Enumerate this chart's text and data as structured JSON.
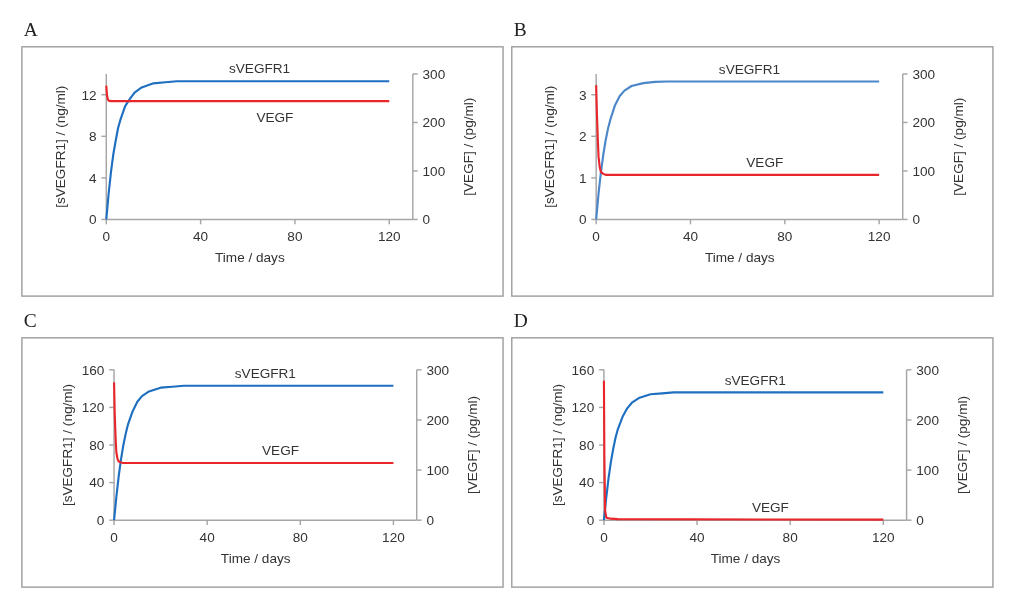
{
  "chart_data": [
    {
      "type": "line",
      "title": "A",
      "xlabel": "Time / days",
      "ylabel": "[sVEGFR1] / (ng/ml)",
      "y2label": "[VEGF] / (pg/ml)",
      "xlim": [
        0,
        130
      ],
      "xticks": [
        0,
        40,
        80,
        120
      ],
      "ylim": [
        0,
        14
      ],
      "yticks": [
        0,
        4,
        8,
        12
      ],
      "y2lim": [
        0,
        300
      ],
      "y2ticks": [
        0,
        100,
        200,
        300
      ],
      "legend": false,
      "grid": false,
      "series": [
        {
          "name": "sVEGFR1",
          "color": "#1f6fc0",
          "x": [
            0,
            1,
            2,
            3,
            4,
            5,
            6,
            8,
            10,
            12,
            15,
            20,
            25,
            30,
            40,
            60,
            80,
            100,
            120
          ],
          "values": [
            0,
            2.5,
            4.6,
            6.3,
            7.6,
            8.8,
            9.6,
            10.9,
            11.6,
            12.2,
            12.7,
            13.1,
            13.2,
            13.3,
            13.3,
            13.3,
            13.3,
            13.3,
            13.3
          ]
        },
        {
          "name": "VEGF",
          "color": "#e8262b",
          "axis": "y2",
          "x": [
            0,
            0.3,
            0.7,
            1,
            2,
            120
          ],
          "values": [
            276,
            256,
            247,
            245,
            244,
            244
          ]
        }
      ]
    },
    {
      "type": "line",
      "title": "B",
      "xlabel": "Time / days",
      "ylabel": "[sVEGFR1] / (ng/ml)",
      "y2label": "[VEGF] / (pg/ml)",
      "xlim": [
        0,
        130
      ],
      "xticks": [
        0,
        40,
        80,
        120
      ],
      "ylim": [
        0,
        3.5
      ],
      "yticks": [
        0,
        1,
        2,
        3
      ],
      "y2lim": [
        0,
        300
      ],
      "y2ticks": [
        0,
        100,
        200,
        300
      ],
      "legend": false,
      "grid": false,
      "series": [
        {
          "name": "sVEGFR1",
          "color": "#4a86c8",
          "x": [
            0,
            1,
            2,
            3,
            4,
            5,
            6,
            8,
            10,
            12,
            15,
            20,
            25,
            30,
            40,
            60,
            80,
            100,
            120
          ],
          "values": [
            0,
            0.62,
            1.13,
            1.55,
            1.9,
            2.18,
            2.4,
            2.75,
            2.97,
            3.1,
            3.21,
            3.28,
            3.31,
            3.32,
            3.32,
            3.32,
            3.32,
            3.32,
            3.32
          ]
        },
        {
          "name": "VEGF",
          "color": "#e8262b",
          "axis": "y2",
          "x": [
            0,
            0.3,
            0.7,
            1,
            1.5,
            2,
            3,
            4,
            120
          ],
          "values": [
            277,
            220,
            165,
            130,
            108,
            98,
            94,
            92,
            92
          ]
        }
      ]
    },
    {
      "type": "line",
      "title": "C",
      "xlabel": "Time / days",
      "ylabel": "[sVEGFR1] / (ng/ml)",
      "y2label": "[VEGF] / (pg/ml)",
      "xlim": [
        0,
        130
      ],
      "xticks": [
        0,
        40,
        80,
        120
      ],
      "ylim": [
        0,
        160
      ],
      "yticks": [
        0,
        40,
        80,
        120,
        160
      ],
      "y2lim": [
        0,
        300
      ],
      "y2ticks": [
        0,
        100,
        200,
        300
      ],
      "legend": false,
      "grid": false,
      "series": [
        {
          "name": "sVEGFR1",
          "color": "#1f6fc0",
          "x": [
            0,
            1,
            2,
            3,
            4,
            5,
            6,
            8,
            10,
            12,
            15,
            20,
            25,
            30,
            40,
            60,
            80,
            100,
            120
          ],
          "values": [
            0,
            25,
            47,
            65,
            80,
            92,
            102,
            116,
            126,
            132,
            137,
            141,
            142,
            143,
            143,
            143,
            143,
            143,
            143
          ]
        },
        {
          "name": "VEGF",
          "color": "#e8262b",
          "axis": "y2",
          "x": [
            0,
            0.3,
            0.7,
            1,
            1.5,
            2,
            3,
            4,
            120
          ],
          "values": [
            275,
            210,
            160,
            135,
            122,
            117,
            115,
            114,
            114
          ]
        }
      ]
    },
    {
      "type": "line",
      "title": "D",
      "xlabel": "Time / days",
      "ylabel": "[sVEGFR1] / (ng/ml)",
      "y2label": "[VEGF] / (pg/ml)",
      "xlim": [
        0,
        130
      ],
      "xticks": [
        0,
        40,
        80,
        120
      ],
      "ylim": [
        0,
        160
      ],
      "yticks": [
        0,
        40,
        80,
        120,
        160
      ],
      "y2lim": [
        0,
        300
      ],
      "y2ticks": [
        0,
        100,
        200,
        300
      ],
      "legend": false,
      "grid": false,
      "series": [
        {
          "name": "sVEGFR1",
          "color": "#1f6fc0",
          "x": [
            0,
            1,
            2,
            3,
            4,
            5,
            6,
            8,
            10,
            12,
            15,
            20,
            25,
            30,
            40,
            60,
            80,
            100,
            120
          ],
          "values": [
            0,
            24,
            45,
            62,
            76,
            88,
            97,
            110,
            119,
            125,
            130,
            134,
            135,
            136,
            136,
            136,
            136,
            136,
            136
          ]
        },
        {
          "name": "VEGF",
          "color": "#e8262b",
          "axis": "y2",
          "x": [
            0,
            0.2,
            0.5,
            1,
            3,
            6,
            120
          ],
          "values": [
            278,
            120,
            20,
            5,
            3,
            2,
            1
          ]
        }
      ]
    }
  ]
}
